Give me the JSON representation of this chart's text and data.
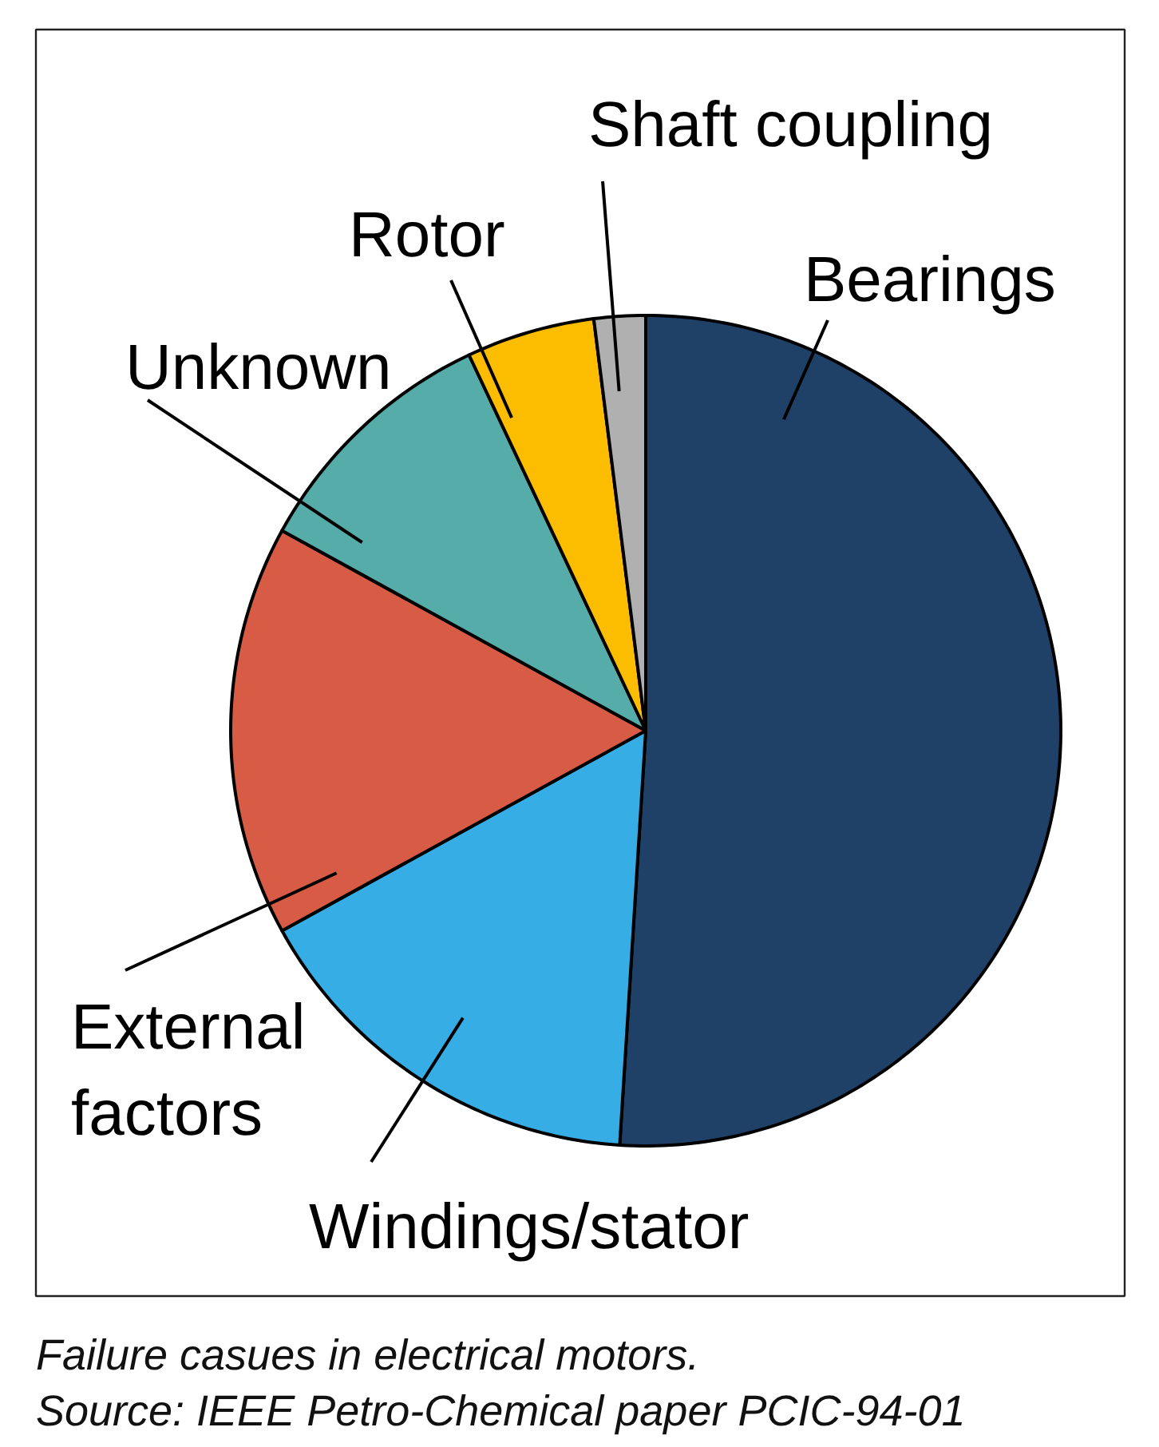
{
  "chart_data": {
    "type": "pie",
    "categories": [
      "Bearings",
      "Windings/stator",
      "External factors",
      "Unknown",
      "Rotor",
      "Shaft coupling"
    ],
    "values": [
      51,
      16,
      16,
      10,
      5,
      2
    ],
    "colors": [
      "#1f4168",
      "#36aee5",
      "#d75b45",
      "#56aca9",
      "#fcbc00",
      "#b0b0b0"
    ],
    "annotations": [
      "Failure casues in electrical motors.",
      "Source: IEEE Petro-Chemical paper PCIC-94-01"
    ]
  }
}
